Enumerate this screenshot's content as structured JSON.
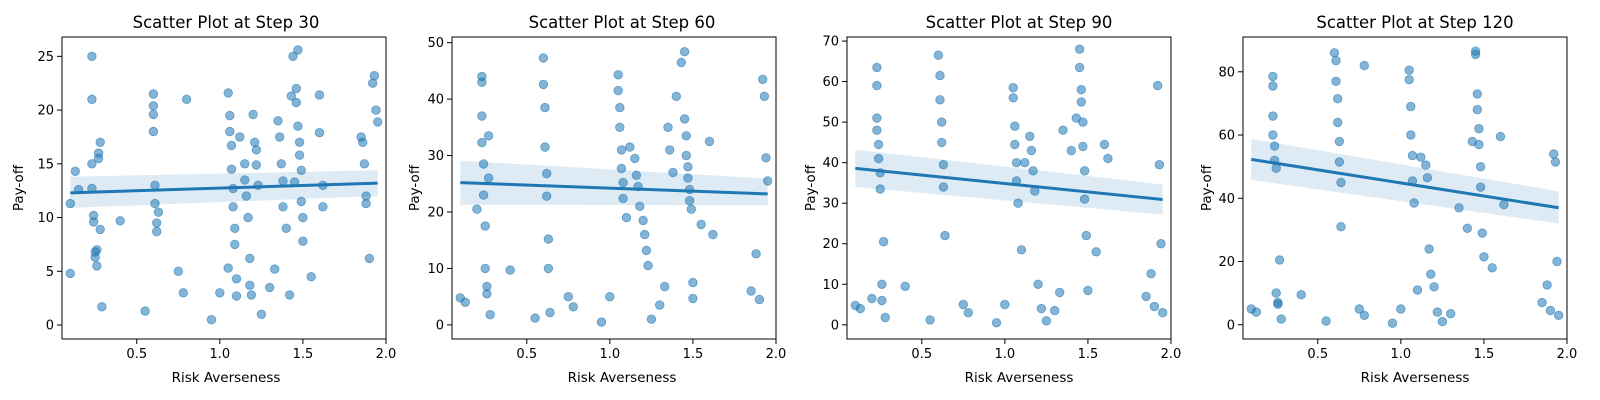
{
  "colors": {
    "points": "#1f77b4",
    "regression_line": "#1f77b4",
    "confidence_band": "#1f77b4",
    "axes": "#000000",
    "background": "#ffffff"
  },
  "chart_data": [
    {
      "type": "scatter",
      "title": "Scatter Plot at Step 30",
      "xlabel": "Risk Averseness",
      "ylabel": "Pay-off",
      "xlim": [
        0.05,
        2.0
      ],
      "ylim": [
        -1.3,
        26.8
      ],
      "xticks": [
        0.5,
        1.0,
        1.5,
        2.0
      ],
      "yticks": [
        0,
        5,
        10,
        15,
        20,
        25
      ],
      "grid": false,
      "x_tick_labels": [
        "0.5",
        "1.0",
        "1.5",
        "2.0"
      ],
      "y_tick_labels": [
        "0",
        "5",
        "10",
        "15",
        "20",
        "25"
      ],
      "regression": {
        "x": [
          0.1,
          1.95
        ],
        "y": [
          12.3,
          13.2
        ],
        "ci_low": [
          10.9,
          12.0
        ],
        "ci_high": [
          13.8,
          14.4
        ]
      },
      "x": [
        0.1,
        0.1,
        0.13,
        0.15,
        0.23,
        0.23,
        0.23,
        0.23,
        0.24,
        0.24,
        0.25,
        0.25,
        0.26,
        0.26,
        0.27,
        0.27,
        0.28,
        0.28,
        0.29,
        0.4,
        0.55,
        0.6,
        0.6,
        0.6,
        0.6,
        0.61,
        0.61,
        0.62,
        0.62,
        0.63,
        0.75,
        0.78,
        0.8,
        0.95,
        1.0,
        1.05,
        1.05,
        1.06,
        1.06,
        1.07,
        1.07,
        1.08,
        1.08,
        1.09,
        1.09,
        1.1,
        1.1,
        1.12,
        1.15,
        1.15,
        1.16,
        1.17,
        1.18,
        1.18,
        1.19,
        1.2,
        1.21,
        1.22,
        1.22,
        1.23,
        1.25,
        1.3,
        1.33,
        1.35,
        1.36,
        1.37,
        1.38,
        1.38,
        1.4,
        1.42,
        1.43,
        1.44,
        1.45,
        1.46,
        1.46,
        1.47,
        1.47,
        1.48,
        1.48,
        1.49,
        1.49,
        1.5,
        1.5,
        1.55,
        1.6,
        1.6,
        1.62,
        1.62,
        1.85,
        1.86,
        1.87,
        1.88,
        1.88,
        1.9,
        1.92,
        1.93,
        1.94,
        1.95
      ],
      "y": [
        4.8,
        11.3,
        14.3,
        12.6,
        25.0,
        21.0,
        15.0,
        12.7,
        10.2,
        9.6,
        6.8,
        6.3,
        5.5,
        7.0,
        15.5,
        16.0,
        17.0,
        8.9,
        1.7,
        9.7,
        1.3,
        20.4,
        21.5,
        19.6,
        18.0,
        13.0,
        11.3,
        9.5,
        8.7,
        10.5,
        5.0,
        3.0,
        21.0,
        0.5,
        3.0,
        5.3,
        21.6,
        19.5,
        18.0,
        16.7,
        14.5,
        12.7,
        11.0,
        9.0,
        7.5,
        4.3,
        2.7,
        17.5,
        15.0,
        13.5,
        12.0,
        10.0,
        6.2,
        3.7,
        2.8,
        19.6,
        17.0,
        16.3,
        14.9,
        13.0,
        1.0,
        3.5,
        5.2,
        19.0,
        17.5,
        15.0,
        13.4,
        11.0,
        9.0,
        2.8,
        21.3,
        25.0,
        13.3,
        22.0,
        20.7,
        25.6,
        18.5,
        17.0,
        15.8,
        14.4,
        11.5,
        10.0,
        7.8,
        4.5,
        21.4,
        17.9,
        13.0,
        11.0,
        17.5,
        17.0,
        15.0,
        12.0,
        11.3,
        6.2,
        22.5,
        23.2,
        20.0,
        18.9
      ]
    },
    {
      "type": "scatter",
      "title": "Scatter Plot at Step 60",
      "xlabel": "Risk Averseness",
      "ylabel": "Pay-off",
      "xlim": [
        0.05,
        2.0
      ],
      "ylim": [
        -2.5,
        51
      ],
      "xticks": [
        0.5,
        1.0,
        1.5,
        2.0
      ],
      "yticks": [
        0,
        10,
        20,
        30,
        40,
        50
      ],
      "grid": false,
      "x_tick_labels": [
        "0.5",
        "1.0",
        "1.5",
        "2.0"
      ],
      "y_tick_labels": [
        "0",
        "10",
        "20",
        "30",
        "40",
        "50"
      ],
      "regression": {
        "x": [
          0.1,
          1.95
        ],
        "y": [
          25.2,
          23.2
        ],
        "ci_low": [
          21.3,
          21.2
        ],
        "ci_high": [
          29.1,
          25.9
        ]
      },
      "x": [
        0.1,
        0.13,
        0.2,
        0.23,
        0.23,
        0.23,
        0.23,
        0.24,
        0.24,
        0.25,
        0.25,
        0.26,
        0.26,
        0.27,
        0.27,
        0.28,
        0.4,
        0.55,
        0.6,
        0.6,
        0.61,
        0.61,
        0.62,
        0.62,
        0.63,
        0.63,
        0.64,
        0.75,
        0.78,
        0.95,
        1.0,
        1.05,
        1.05,
        1.06,
        1.06,
        1.07,
        1.07,
        1.08,
        1.08,
        1.1,
        1.12,
        1.15,
        1.16,
        1.17,
        1.18,
        1.2,
        1.21,
        1.22,
        1.23,
        1.25,
        1.3,
        1.33,
        1.35,
        1.36,
        1.38,
        1.4,
        1.43,
        1.45,
        1.45,
        1.46,
        1.46,
        1.47,
        1.47,
        1.48,
        1.48,
        1.49,
        1.5,
        1.5,
        1.55,
        1.6,
        1.62,
        1.85,
        1.88,
        1.9,
        1.92,
        1.93,
        1.94,
        1.95
      ],
      "y": [
        4.8,
        4.0,
        20.5,
        44.0,
        43.0,
        37.0,
        32.3,
        28.5,
        23.0,
        17.5,
        10.0,
        6.8,
        5.5,
        33.5,
        26.0,
        1.8,
        9.7,
        1.2,
        47.3,
        42.6,
        38.5,
        31.5,
        26.8,
        22.8,
        15.2,
        10.0,
        2.2,
        5.0,
        3.2,
        0.5,
        5.0,
        44.3,
        41.5,
        38.5,
        35.0,
        31.0,
        27.7,
        25.2,
        22.4,
        19.0,
        31.5,
        29.5,
        26.5,
        24.5,
        21.0,
        18.5,
        16.0,
        13.2,
        10.5,
        1.0,
        3.5,
        6.8,
        35.0,
        31.0,
        27.0,
        40.5,
        46.5,
        48.4,
        36.5,
        33.5,
        30.0,
        28.0,
        26.0,
        24.0,
        22.0,
        20.5,
        7.5,
        4.7,
        17.8,
        32.5,
        16.0,
        6.0,
        12.6,
        4.5,
        43.5,
        40.5,
        29.6,
        25.5
      ]
    },
    {
      "type": "scatter",
      "title": "Scatter Plot at Step 90",
      "xlabel": "Risk Averseness",
      "ylabel": "Pay-off",
      "xlim": [
        0.05,
        2.0
      ],
      "ylim": [
        -3.5,
        71
      ],
      "xticks": [
        0.5,
        1.0,
        1.5,
        2.0
      ],
      "yticks": [
        0,
        10,
        20,
        30,
        40,
        50,
        60,
        70
      ],
      "grid": false,
      "x_tick_labels": [
        "0.5",
        "1.0",
        "1.5",
        "2.0"
      ],
      "y_tick_labels": [
        "0",
        "10",
        "20",
        "30",
        "40",
        "50",
        "60",
        "70"
      ],
      "regression": {
        "x": [
          0.1,
          1.95
        ],
        "y": [
          38.6,
          30.9
        ],
        "ci_low": [
          34.0,
          27.2
        ],
        "ci_high": [
          43.2,
          34.6
        ]
      },
      "x": [
        0.1,
        0.13,
        0.2,
        0.23,
        0.23,
        0.23,
        0.23,
        0.24,
        0.24,
        0.25,
        0.25,
        0.26,
        0.26,
        0.27,
        0.28,
        0.4,
        0.55,
        0.6,
        0.61,
        0.61,
        0.62,
        0.62,
        0.63,
        0.63,
        0.64,
        0.75,
        0.78,
        0.95,
        1.0,
        1.05,
        1.05,
        1.06,
        1.06,
        1.07,
        1.07,
        1.08,
        1.1,
        1.12,
        1.15,
        1.16,
        1.17,
        1.18,
        1.2,
        1.22,
        1.25,
        1.3,
        1.33,
        1.35,
        1.4,
        1.43,
        1.45,
        1.45,
        1.46,
        1.46,
        1.47,
        1.47,
        1.48,
        1.48,
        1.49,
        1.5,
        1.55,
        1.6,
        1.62,
        1.85,
        1.88,
        1.9,
        1.92,
        1.93,
        1.94,
        1.95
      ],
      "y": [
        4.8,
        4.0,
        6.5,
        63.5,
        59.0,
        51.0,
        48.0,
        44.5,
        41.0,
        37.5,
        33.5,
        10.0,
        6.0,
        20.5,
        1.8,
        9.5,
        1.2,
        66.5,
        61.5,
        55.5,
        50.0,
        45.0,
        39.5,
        34.0,
        22.0,
        5.0,
        3.0,
        0.5,
        5.0,
        58.5,
        56.0,
        49.0,
        44.5,
        40.0,
        35.5,
        30.0,
        18.5,
        40.0,
        46.5,
        43.0,
        38.0,
        33.0,
        10.0,
        4.0,
        1.0,
        3.5,
        8.0,
        48.0,
        43.0,
        51.0,
        68.0,
        63.5,
        58.0,
        55.0,
        50.0,
        44.0,
        38.0,
        31.0,
        22.0,
        8.5,
        18.0,
        44.5,
        41.0,
        7.0,
        12.6,
        4.5,
        59.0,
        39.5,
        20.0,
        3.0
      ]
    },
    {
      "type": "scatter",
      "title": "Scatter Plot at Step 120",
      "xlabel": "Risk Averseness",
      "ylabel": "Pay-off",
      "xlim": [
        0.05,
        2.0
      ],
      "ylim": [
        -4.5,
        91
      ],
      "xticks": [
        0.5,
        1.0,
        1.5,
        2.0
      ],
      "yticks": [
        0,
        20,
        40,
        60,
        80
      ],
      "grid": false,
      "x_tick_labels": [
        "0.5",
        "1.0",
        "1.5",
        "2.0"
      ],
      "y_tick_labels": [
        "0",
        "20",
        "40",
        "60",
        "80"
      ],
      "regression": {
        "x": [
          0.1,
          1.95
        ],
        "y": [
          52.3,
          37.0
        ],
        "ci_low": [
          45.8,
          32.0
        ],
        "ci_high": [
          58.8,
          42.2
        ]
      },
      "x": [
        0.1,
        0.13,
        0.23,
        0.23,
        0.23,
        0.23,
        0.24,
        0.24,
        0.25,
        0.25,
        0.26,
        0.26,
        0.27,
        0.28,
        0.4,
        0.55,
        0.6,
        0.61,
        0.61,
        0.62,
        0.62,
        0.63,
        0.63,
        0.64,
        0.64,
        0.75,
        0.78,
        0.78,
        0.95,
        1.0,
        1.05,
        1.05,
        1.06,
        1.06,
        1.07,
        1.07,
        1.08,
        1.1,
        1.12,
        1.15,
        1.16,
        1.17,
        1.18,
        1.2,
        1.22,
        1.25,
        1.3,
        1.35,
        1.4,
        1.43,
        1.45,
        1.45,
        1.46,
        1.46,
        1.47,
        1.47,
        1.48,
        1.48,
        1.49,
        1.5,
        1.55,
        1.6,
        1.62,
        1.85,
        1.88,
        1.9,
        1.92,
        1.93,
        1.94,
        1.95
      ],
      "y": [
        5.0,
        4.0,
        78.5,
        75.5,
        66.0,
        60.0,
        56.5,
        52.0,
        49.5,
        10.0,
        6.5,
        7.0,
        20.5,
        1.8,
        9.5,
        1.2,
        86.0,
        83.5,
        77.0,
        71.5,
        64.0,
        58.0,
        51.5,
        45.0,
        31.0,
        5.0,
        3.0,
        82.0,
        0.5,
        5.0,
        80.5,
        77.5,
        69.0,
        60.0,
        53.5,
        45.5,
        38.5,
        11.0,
        53.0,
        50.5,
        46.5,
        24.0,
        16.0,
        12.0,
        4.0,
        1.0,
        3.5,
        37.0,
        30.5,
        58.0,
        86.5,
        85.5,
        73.0,
        68.0,
        62.0,
        57.0,
        50.0,
        43.5,
        29.0,
        21.5,
        18.0,
        59.5,
        38.0,
        7.0,
        12.6,
        4.5,
        54.0,
        51.5,
        20.0,
        3.0
      ]
    }
  ]
}
